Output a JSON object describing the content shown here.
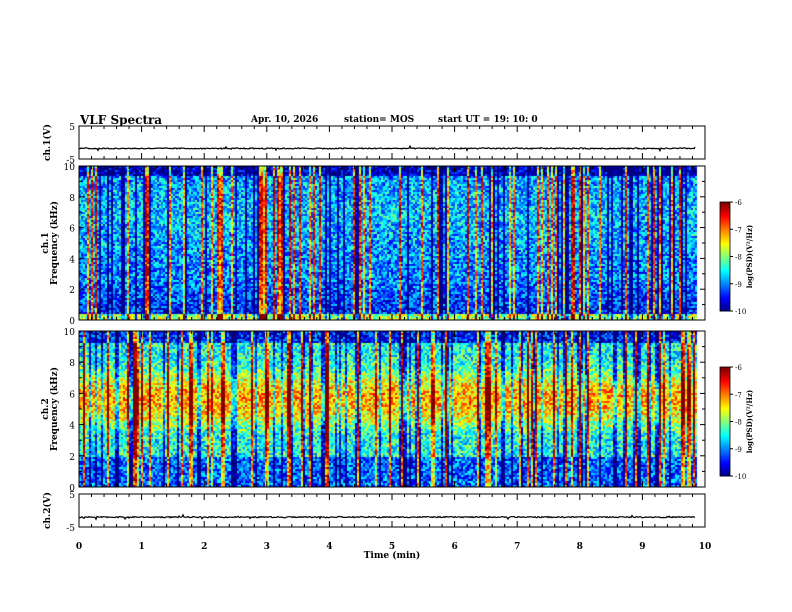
{
  "header": {
    "title": "VLF Spectra",
    "date": "Apr. 10, 2026",
    "station": "station= MOS",
    "start": "start  UT  =   19: 10: 0"
  },
  "chart_data": [
    {
      "type": "line",
      "name": "ch1-waveform",
      "ylabel": "ch.1(V)",
      "ylim": [
        -5,
        5
      ],
      "y_ticks": [
        "5",
        "-5"
      ],
      "xlim": [
        0,
        10
      ],
      "series": [
        {
          "name": "ch.1",
          "baseline": -1.8,
          "end_min": 9.85
        }
      ]
    },
    {
      "type": "heatmap",
      "name": "ch1-spectrogram",
      "ylabel": "ch.1\nFrequency (kHz)",
      "ylim": [
        0,
        10
      ],
      "y_ticks": [
        "0",
        "2",
        "4",
        "6",
        "8",
        "10"
      ],
      "xlim": [
        0,
        10
      ],
      "data_end_min": 9.85,
      "colorbar": {
        "label": "log(PSD)(V²/Hz)",
        "range": [
          -10,
          -6
        ],
        "ticks": [
          "-6",
          "-7",
          "-8",
          "-9",
          "-10"
        ]
      }
    },
    {
      "type": "heatmap",
      "name": "ch2-spectrogram",
      "ylabel": "ch.2\nFrequency (kHz)",
      "ylim": [
        0,
        10
      ],
      "y_ticks": [
        "0",
        "2",
        "4",
        "6",
        "8",
        "10"
      ],
      "xlim": [
        0,
        10
      ],
      "data_end_min": 9.85,
      "colorbar": {
        "label": "log(PSD)(V²/Hz)",
        "range": [
          -10,
          -6
        ],
        "ticks": [
          "-6",
          "-7",
          "-8",
          "-9",
          "-10"
        ]
      }
    },
    {
      "type": "line",
      "name": "ch2-waveform",
      "ylabel": "ch.2(V)",
      "ylim": [
        -5,
        5
      ],
      "y_ticks": [
        "5",
        "-5"
      ],
      "xlim": [
        0,
        10
      ],
      "series": [
        {
          "name": "ch.2",
          "baseline": -2.0,
          "end_min": 9.85
        }
      ]
    }
  ],
  "x_axis": {
    "label": "Time  (min)",
    "ticks": [
      "0",
      "1",
      "2",
      "3",
      "4",
      "5",
      "6",
      "7",
      "8",
      "9",
      "10"
    ]
  }
}
